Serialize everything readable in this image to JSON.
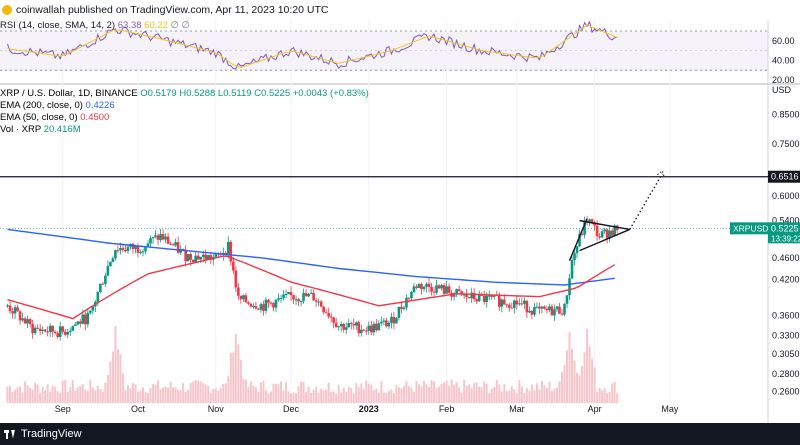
{
  "header": {
    "publisher": "coinwallah published on TradingView.com, Apr 11, 2023 10:20 UTC"
  },
  "rsi_legend": {
    "label": "RSI (14, close, SMA, 14, 2)",
    "value": "63.38",
    "value2": "60.22",
    "extra": "∅ ∅"
  },
  "price_legend": {
    "symbol_line": "XRP / U.S. Dollar, 1D, BINANCE",
    "ohlc": "O0.5179 H0.5288 L0.5119 C0.5225 +0.0043 (+0.83%)",
    "ema200_label": "EMA (200, close, 0)",
    "ema200_value": "0.4226",
    "ema50_label": "EMA (50, close, 0)",
    "ema50_value": "0.4500",
    "vol_label": "Vol · XRP",
    "vol_value": "20.416M"
  },
  "axis": {
    "currency": "USD",
    "price_ticks": [
      "0.8500",
      "0.7500",
      "0.6000",
      "0.5400",
      "0.4600",
      "0.4200",
      "0.3600",
      "0.3300",
      "0.3050",
      "0.2800",
      "0.2600"
    ],
    "rsi_ticks": [
      "60.00",
      "40.00",
      "20.00"
    ],
    "time_ticks": [
      "Sep",
      "Oct",
      "Nov",
      "Dec",
      "2023",
      "Feb",
      "Mar",
      "Apr",
      "May"
    ]
  },
  "markers": {
    "level_label": "0.6516",
    "symbol_tag": "XRPUSD",
    "price_tag": "0.5225",
    "countdown": "13:39:22"
  },
  "footer": {
    "brand": "TradingView"
  },
  "colors": {
    "up": "#089981",
    "down": "#f23645",
    "ema200": "#2962ff",
    "ema50": "#f23645",
    "rsi": "#7e57c2",
    "rsi_sma": "#f5c518",
    "volume": "#f7c5c9"
  },
  "chart_data": {
    "type": "candlestick",
    "symbol": "XRP / U.S. Dollar, 1D, BINANCE",
    "last": {
      "open": 0.5179,
      "high": 0.5288,
      "low": 0.5119,
      "close": 0.5225,
      "change": 0.0043,
      "change_pct": 0.83
    },
    "horizontal_level": 0.6516,
    "ema200_last": 0.4226,
    "ema50_last": 0.45,
    "volume_last": "20.416M",
    "rsi_last": 63.38,
    "rsi_sma_last": 60.22,
    "price_path_anchors": [
      {
        "date": "2022-08-10",
        "close": 0.375
      },
      {
        "date": "2022-08-20",
        "close": 0.34
      },
      {
        "date": "2022-09-01",
        "close": 0.335
      },
      {
        "date": "2022-09-12",
        "close": 0.36
      },
      {
        "date": "2022-09-22",
        "close": 0.48
      },
      {
        "date": "2022-10-01",
        "close": 0.48
      },
      {
        "date": "2022-10-10",
        "close": 0.505
      },
      {
        "date": "2022-10-20",
        "close": 0.465
      },
      {
        "date": "2022-11-01",
        "close": 0.46
      },
      {
        "date": "2022-11-06",
        "close": 0.485
      },
      {
        "date": "2022-11-10",
        "close": 0.385
      },
      {
        "date": "2022-11-20",
        "close": 0.375
      },
      {
        "date": "2022-12-01",
        "close": 0.39
      },
      {
        "date": "2022-12-10",
        "close": 0.39
      },
      {
        "date": "2022-12-20",
        "close": 0.345
      },
      {
        "date": "2023-01-01",
        "close": 0.34
      },
      {
        "date": "2023-01-10",
        "close": 0.35
      },
      {
        "date": "2023-01-20",
        "close": 0.41
      },
      {
        "date": "2023-01-28",
        "close": 0.405
      },
      {
        "date": "2023-02-08",
        "close": 0.39
      },
      {
        "date": "2023-02-18",
        "close": 0.385
      },
      {
        "date": "2023-03-01",
        "close": 0.38
      },
      {
        "date": "2023-03-10",
        "close": 0.365
      },
      {
        "date": "2023-03-20",
        "close": 0.37
      },
      {
        "date": "2023-03-23",
        "close": 0.455
      },
      {
        "date": "2023-03-29",
        "close": 0.545
      },
      {
        "date": "2023-04-03",
        "close": 0.505
      },
      {
        "date": "2023-04-10",
        "close": 0.5225
      }
    ],
    "ema200_anchors": [
      {
        "date": "2022-08-10",
        "value": 0.52
      },
      {
        "date": "2022-09-20",
        "value": 0.49
      },
      {
        "date": "2022-10-20",
        "value": 0.475
      },
      {
        "date": "2022-11-20",
        "value": 0.46
      },
      {
        "date": "2022-12-20",
        "value": 0.44
      },
      {
        "date": "2023-01-20",
        "value": 0.425
      },
      {
        "date": "2023-02-20",
        "value": 0.415
      },
      {
        "date": "2023-03-20",
        "value": 0.41
      },
      {
        "date": "2023-04-10",
        "value": 0.4226
      }
    ],
    "ema50_anchors": [
      {
        "date": "2022-08-10",
        "value": 0.385
      },
      {
        "date": "2022-09-05",
        "value": 0.355
      },
      {
        "date": "2022-10-05",
        "value": 0.43
      },
      {
        "date": "2022-11-05",
        "value": 0.465
      },
      {
        "date": "2022-12-01",
        "value": 0.415
      },
      {
        "date": "2023-01-05",
        "value": 0.375
      },
      {
        "date": "2023-02-05",
        "value": 0.395
      },
      {
        "date": "2023-03-10",
        "value": 0.39
      },
      {
        "date": "2023-03-25",
        "value": 0.405
      },
      {
        "date": "2023-04-10",
        "value": 0.45
      }
    ],
    "rsi_anchors": [
      {
        "date": "2022-08-10",
        "value": 52
      },
      {
        "date": "2022-09-01",
        "value": 44
      },
      {
        "date": "2022-09-22",
        "value": 72
      },
      {
        "date": "2022-10-10",
        "value": 62
      },
      {
        "date": "2022-11-01",
        "value": 48
      },
      {
        "date": "2022-11-10",
        "value": 32
      },
      {
        "date": "2022-12-01",
        "value": 50
      },
      {
        "date": "2022-12-20",
        "value": 37
      },
      {
        "date": "2023-01-10",
        "value": 50
      },
      {
        "date": "2023-01-25",
        "value": 65
      },
      {
        "date": "2023-02-15",
        "value": 50
      },
      {
        "date": "2023-03-10",
        "value": 42
      },
      {
        "date": "2023-03-29",
        "value": 76
      },
      {
        "date": "2023-04-10",
        "value": 63.38
      }
    ],
    "triangle_pattern": {
      "upper": [
        {
          "date": "2023-03-26",
          "price": 0.54
        },
        {
          "date": "2023-04-15",
          "price": 0.52
        }
      ],
      "lower": [
        {
          "date": "2023-03-26",
          "price": 0.475
        },
        {
          "date": "2023-04-15",
          "price": 0.52
        }
      ],
      "pole": [
        {
          "date": "2023-03-22",
          "price": 0.455
        },
        {
          "date": "2023-03-29",
          "price": 0.545
        }
      ],
      "projection": [
        {
          "date": "2023-04-15",
          "price": 0.52
        },
        {
          "date": "2023-04-28",
          "price": 0.66
        }
      ]
    },
    "volume_high_days": [
      "2022-09-22",
      "2022-11-09",
      "2023-03-22",
      "2023-03-29"
    ]
  }
}
